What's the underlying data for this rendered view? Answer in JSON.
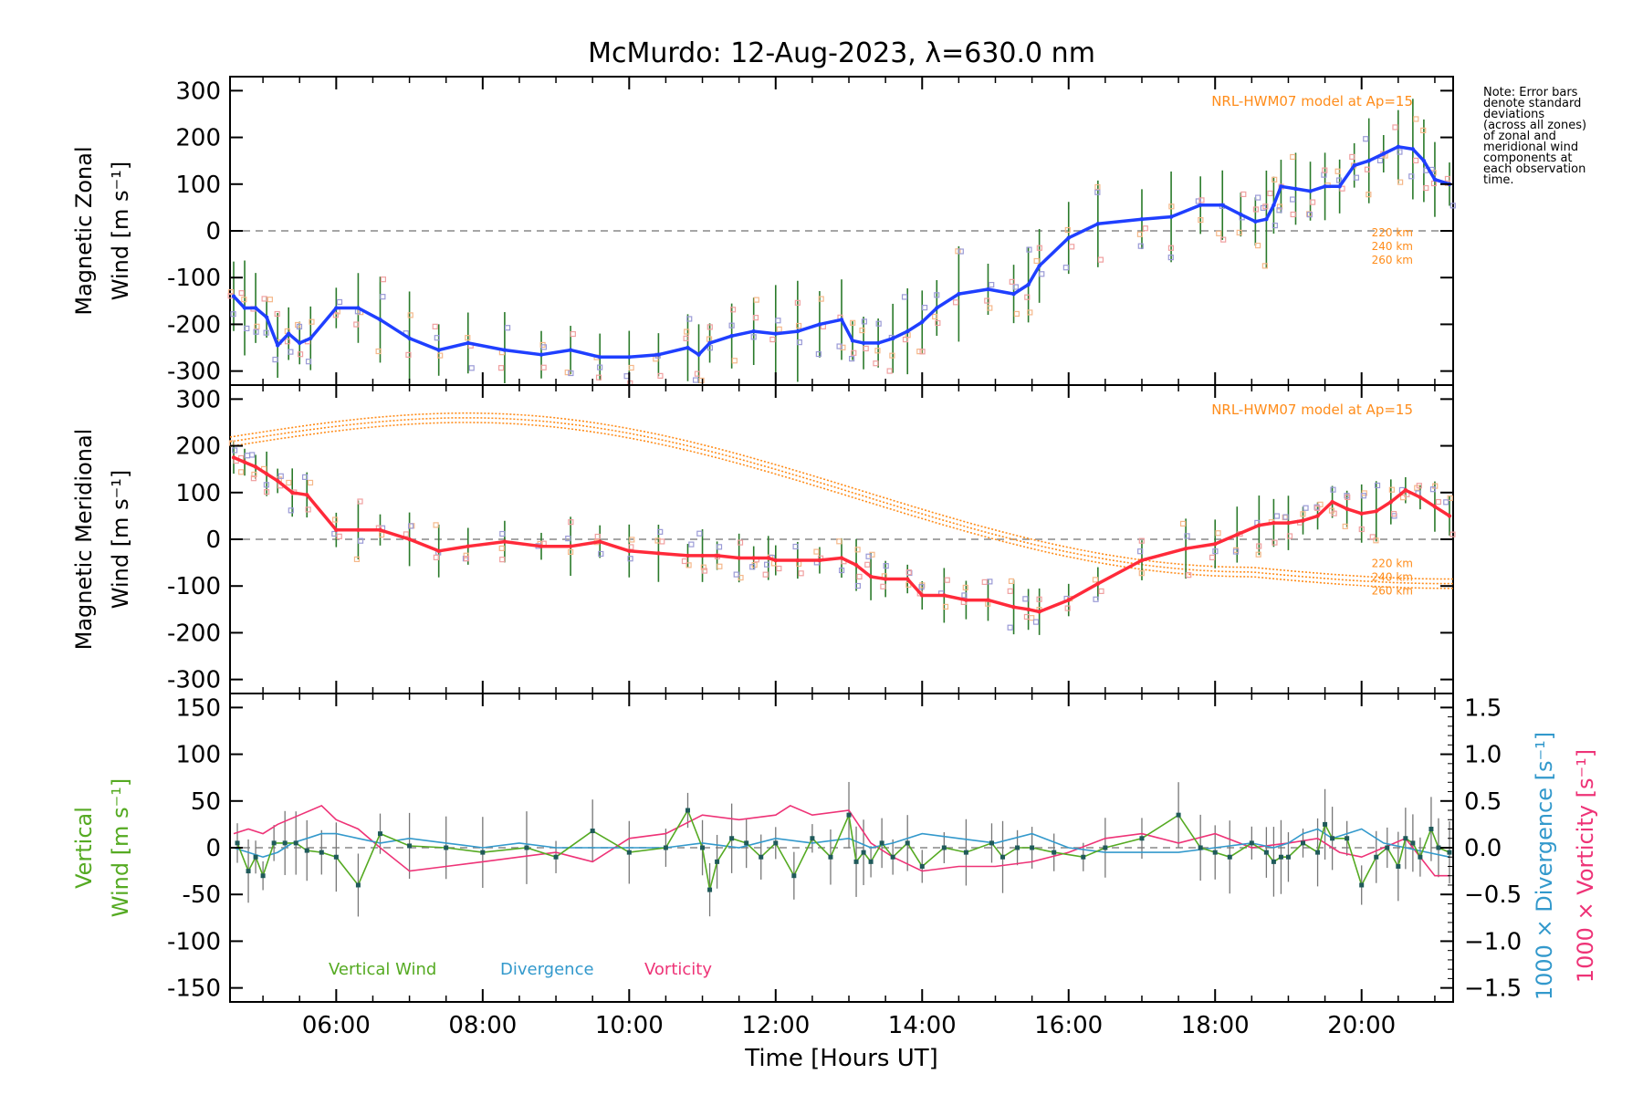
{
  "chart_data": [
    {
      "type": "line",
      "panel": "zonal",
      "title": "McMurdo: 12-Aug-2023, λ=630.0 nm",
      "ylabel_line1": "Magnetic Zonal",
      "ylabel_line2": "Wind [m s⁻¹]",
      "ylim": [
        -330,
        330
      ],
      "yticks": [
        -300,
        -200,
        -100,
        0,
        100,
        200,
        300
      ],
      "model_label": "NRL-HWM07 model at Ap=15",
      "altitude_labels": [
        "220 km",
        "240 km",
        "260 km"
      ],
      "series_color": "#1f3fff",
      "x": [
        4.6,
        4.75,
        4.9,
        5.05,
        5.2,
        5.35,
        5.5,
        5.65,
        6.0,
        6.3,
        6.6,
        7.0,
        7.4,
        7.8,
        8.3,
        8.8,
        9.2,
        9.6,
        10.0,
        10.4,
        10.8,
        10.95,
        11.1,
        11.4,
        11.7,
        12.0,
        12.3,
        12.6,
        12.9,
        13.05,
        13.2,
        13.4,
        13.6,
        13.8,
        14.0,
        14.2,
        14.5,
        14.9,
        15.25,
        15.45,
        15.6,
        16.0,
        16.4,
        17.0,
        17.4,
        17.8,
        18.1,
        18.35,
        18.55,
        18.7,
        18.8,
        18.9,
        19.1,
        19.3,
        19.5,
        19.7,
        19.9,
        20.1,
        20.3,
        20.5,
        20.7,
        20.85,
        21.0,
        21.2
      ],
      "values": [
        -140,
        -165,
        -165,
        -185,
        -245,
        -220,
        -240,
        -230,
        -165,
        -165,
        -190,
        -230,
        -255,
        -240,
        -255,
        -265,
        -255,
        -270,
        -270,
        -265,
        -250,
        -265,
        -240,
        -225,
        -215,
        -220,
        -215,
        -200,
        -190,
        -235,
        -240,
        -240,
        -230,
        -215,
        -195,
        -165,
        -135,
        -125,
        -135,
        -115,
        -75,
        -15,
        15,
        25,
        30,
        55,
        55,
        35,
        20,
        25,
        55,
        95,
        90,
        85,
        95,
        95,
        140,
        150,
        165,
        180,
        175,
        150,
        110,
        100
      ]
    },
    {
      "type": "line",
      "panel": "meridional",
      "ylabel_line1": "Magnetic Meridional",
      "ylabel_line2": "Wind [m s⁻¹]",
      "ylim": [
        -330,
        330
      ],
      "yticks": [
        -300,
        -200,
        -100,
        0,
        100,
        200,
        300
      ],
      "model_label": "NRL-HWM07 model at Ap=15",
      "altitude_labels": [
        "220 km",
        "240 km",
        "260 km"
      ],
      "series_color": "#ff2a3a",
      "x": [
        4.6,
        4.75,
        4.9,
        5.05,
        5.2,
        5.4,
        5.6,
        6.0,
        6.3,
        6.6,
        7.0,
        7.4,
        7.8,
        8.3,
        8.8,
        9.2,
        9.6,
        10.0,
        10.4,
        10.8,
        11.0,
        11.2,
        11.5,
        11.7,
        11.9,
        12.0,
        12.3,
        12.6,
        12.9,
        13.1,
        13.3,
        13.5,
        13.8,
        14.0,
        14.3,
        14.6,
        14.9,
        15.25,
        15.45,
        15.6,
        16.0,
        16.4,
        17.0,
        17.6,
        18.0,
        18.3,
        18.6,
        18.8,
        19.0,
        19.2,
        19.4,
        19.6,
        19.8,
        20.0,
        20.2,
        20.4,
        20.6,
        20.8,
        21.0,
        21.2
      ],
      "values": [
        175,
        165,
        155,
        140,
        125,
        100,
        95,
        20,
        20,
        20,
        0,
        -25,
        -15,
        -5,
        -15,
        -15,
        -5,
        -25,
        -30,
        -35,
        -35,
        -35,
        -40,
        -40,
        -40,
        -45,
        -45,
        -45,
        -40,
        -55,
        -80,
        -85,
        -85,
        -120,
        -120,
        -130,
        -130,
        -145,
        -150,
        -155,
        -130,
        -95,
        -45,
        -20,
        -10,
        10,
        30,
        35,
        35,
        40,
        50,
        80,
        65,
        55,
        60,
        80,
        105,
        90,
        70,
        50
      ]
    },
    {
      "type": "line",
      "panel": "vertical",
      "ylabel_line1": "Vertical",
      "ylabel_line2": "Wind [m s⁻¹]",
      "ylim": [
        -165,
        165
      ],
      "yticks": [
        -150,
        -100,
        -50,
        0,
        50,
        100,
        150
      ],
      "xlabel": "Time [Hours UT]",
      "xticks": [
        "06:00",
        "08:00",
        "10:00",
        "12:00",
        "14:00",
        "16:00",
        "18:00",
        "20:00"
      ],
      "xtick_hours": [
        6,
        8,
        10,
        12,
        14,
        16,
        18,
        20
      ],
      "xlim": [
        4.55,
        21.25
      ],
      "right_axis_ticks": [
        "1.5",
        "1.0",
        "0.5",
        "0.0",
        "−0.5",
        "−1.0",
        "−1.5"
      ],
      "right_axis_ylim": [
        -1.65,
        1.65
      ],
      "right_ylabel_divergence": "1000 × Divergence [s⁻¹]",
      "right_ylabel_vorticity": "1000 × Vorticity [s⁻¹]",
      "series": [
        {
          "name": "Vertical Wind",
          "color": "#55aa22",
          "x": [
            4.65,
            4.8,
            4.9,
            5.0,
            5.15,
            5.3,
            5.45,
            5.6,
            5.8,
            6.0,
            6.3,
            6.6,
            7.0,
            7.5,
            8.0,
            8.6,
            9.0,
            9.5,
            10.0,
            10.5,
            10.8,
            11.0,
            11.1,
            11.2,
            11.4,
            11.6,
            11.8,
            12.0,
            12.25,
            12.5,
            12.75,
            13.0,
            13.1,
            13.2,
            13.3,
            13.45,
            13.6,
            13.8,
            14.0,
            14.3,
            14.6,
            14.95,
            15.1,
            15.3,
            15.5,
            15.8,
            16.2,
            16.5,
            17.0,
            17.5,
            17.8,
            18.0,
            18.2,
            18.5,
            18.7,
            18.8,
            18.9,
            19.0,
            19.2,
            19.4,
            19.5,
            19.6,
            19.8,
            20.0,
            20.2,
            20.35,
            20.5,
            20.6,
            20.7,
            20.8,
            20.95,
            21.05,
            21.2
          ],
          "values": [
            5,
            -25,
            -10,
            -30,
            5,
            5,
            5,
            -3,
            -5,
            -10,
            -40,
            15,
            2,
            0,
            -5,
            0,
            -10,
            18,
            -5,
            0,
            40,
            0,
            -45,
            -15,
            10,
            5,
            -10,
            5,
            -30,
            10,
            -10,
            35,
            -15,
            -5,
            -15,
            5,
            -10,
            5,
            -20,
            0,
            -5,
            5,
            -10,
            0,
            0,
            -5,
            -10,
            0,
            10,
            35,
            0,
            -5,
            -10,
            5,
            -5,
            -15,
            -10,
            -10,
            5,
            -5,
            25,
            10,
            10,
            -40,
            -10,
            0,
            -20,
            10,
            5,
            -10,
            20,
            0,
            -5
          ]
        },
        {
          "name": "Divergence",
          "color": "#3399cc",
          "x": [
            4.6,
            4.8,
            5.0,
            5.2,
            5.4,
            5.6,
            5.8,
            6.0,
            6.3,
            6.6,
            7.0,
            7.5,
            8.0,
            8.5,
            9.0,
            9.5,
            10.0,
            10.5,
            11.0,
            11.5,
            12.0,
            12.5,
            13.0,
            13.3,
            13.6,
            14.0,
            14.5,
            15.0,
            15.5,
            16.0,
            16.5,
            17.0,
            17.5,
            18.0,
            18.5,
            18.8,
            19.0,
            19.2,
            19.4,
            19.6,
            19.8,
            20.0,
            20.3,
            20.6,
            20.9,
            21.2
          ],
          "values": [
            0.0,
            -0.05,
            -0.1,
            -0.05,
            0.05,
            0.1,
            0.15,
            0.15,
            0.1,
            0.05,
            0.1,
            0.05,
            0.0,
            0.05,
            0.0,
            0.0,
            0.0,
            0.0,
            0.05,
            0.0,
            0.1,
            0.05,
            0.1,
            0.0,
            0.05,
            0.15,
            0.1,
            0.05,
            0.15,
            0.0,
            -0.05,
            -0.05,
            -0.05,
            0.0,
            0.05,
            0.0,
            0.05,
            0.15,
            0.2,
            0.1,
            0.15,
            0.2,
            0.05,
            0.0,
            -0.05,
            -0.1
          ]
        },
        {
          "name": "Vorticity",
          "color": "#ee3377",
          "x": [
            4.6,
            4.8,
            5.0,
            5.2,
            5.5,
            5.8,
            6.0,
            6.3,
            6.6,
            7.0,
            7.5,
            8.0,
            8.5,
            9.0,
            9.5,
            10.0,
            10.5,
            11.0,
            11.5,
            12.0,
            12.2,
            12.5,
            13.0,
            13.3,
            13.6,
            14.0,
            14.5,
            15.0,
            15.5,
            16.0,
            16.5,
            17.0,
            17.5,
            18.0,
            18.5,
            19.0,
            19.4,
            19.7,
            20.0,
            20.3,
            20.6,
            20.8,
            21.0,
            21.2
          ],
          "values": [
            0.15,
            0.2,
            0.15,
            0.25,
            0.35,
            0.45,
            0.3,
            0.2,
            0.0,
            -0.25,
            -0.2,
            -0.15,
            -0.1,
            -0.05,
            -0.15,
            0.1,
            0.15,
            0.35,
            0.3,
            0.35,
            0.45,
            0.35,
            0.4,
            0.05,
            -0.1,
            -0.25,
            -0.2,
            -0.2,
            -0.15,
            -0.05,
            0.1,
            0.15,
            0.05,
            0.15,
            0.0,
            0.05,
            0.1,
            -0.05,
            -0.1,
            0.0,
            0.1,
            -0.1,
            -0.3,
            -0.3
          ]
        }
      ],
      "legend": [
        "Vertical Wind",
        "Divergence",
        "Vorticity"
      ]
    }
  ],
  "note_lines": [
    "Note: Error bars",
    "denote standard",
    "deviations",
    "(across all zones)",
    "of zonal and",
    "meridional wind",
    "components at",
    "each observation",
    "time."
  ],
  "colors": {
    "model": "#ff8c1a",
    "zero_line": "#888888",
    "error_bar": "#2a7a2a",
    "divergence_label": "#3399cc",
    "vorticity_label": "#ee3377",
    "vertical_label": "#55aa22"
  }
}
